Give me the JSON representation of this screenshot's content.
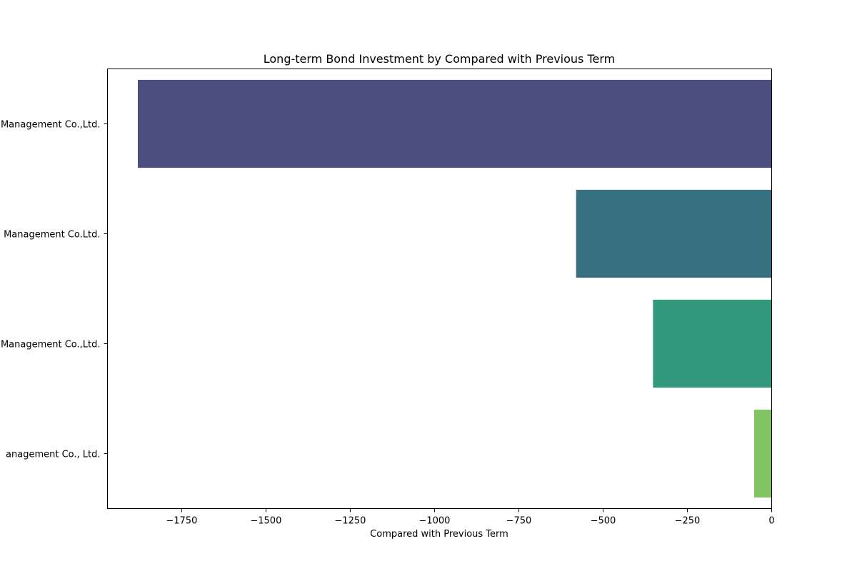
{
  "chart_data": {
    "type": "bar",
    "orientation": "horizontal",
    "title": "Long-term Bond Investment by Compared with Previous Term",
    "xlabel": "Compared with Previous Term",
    "ylabel": "",
    "xlim": [
      -1970,
      0
    ],
    "xticks": [
      -1750,
      -1500,
      -1250,
      -1000,
      -750,
      -500,
      -250,
      0
    ],
    "xtick_labels": [
      "−1750",
      "−1500",
      "−1250",
      "−1000",
      "−750",
      "−500",
      "−250",
      "0"
    ],
    "categories": [
      "Management Co.,Ltd.",
      "Management Co.Ltd.",
      "Management Co.,Ltd.",
      "anagement Co., Ltd."
    ],
    "values": [
      -1880,
      -580,
      -352,
      -52
    ],
    "colors": [
      "#4b4e7f",
      "#377181",
      "#33997c",
      "#80c463"
    ],
    "grid": false,
    "legend": "none"
  }
}
